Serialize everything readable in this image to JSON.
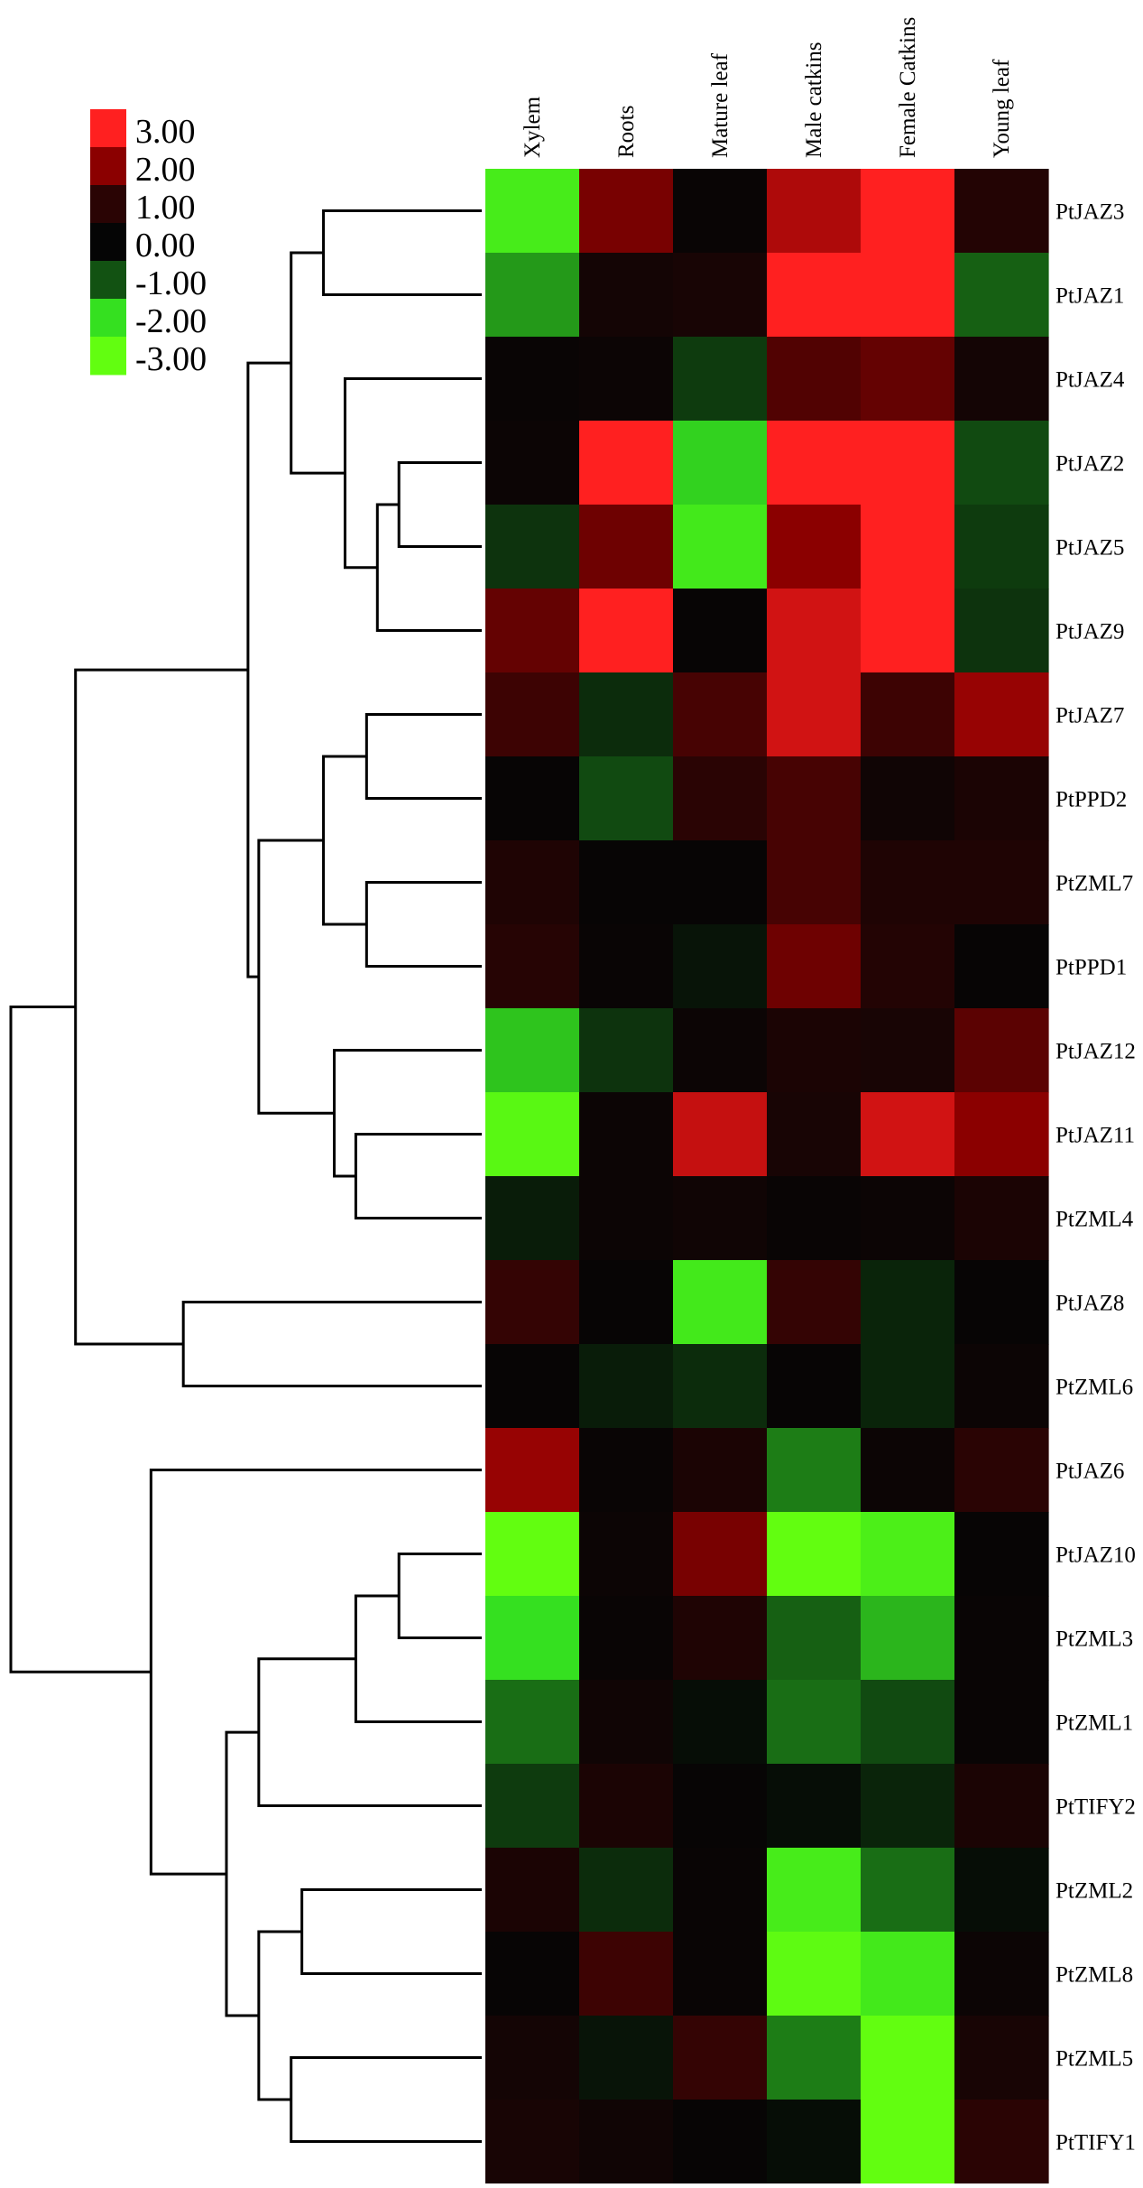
{
  "chart_data": {
    "type": "heatmap",
    "columns": [
      "Xylem",
      "Roots",
      "Mature leaf",
      "Male catkins",
      "Female Catkins",
      "Young leaf"
    ],
    "rows": [
      "PtJAZ3",
      "PtJAZ1",
      "PtJAZ4",
      "PtJAZ2",
      "PtJAZ5",
      "PtJAZ9",
      "PtJAZ7",
      "PtPPD2",
      "PtZML7",
      "PtPPD1",
      "PtJAZ12",
      "PtJAZ11",
      "PtZML4",
      "PtJAZ8",
      "PtZML6",
      "PtJAZ6",
      "PtJAZ10",
      "PtZML3",
      "PtZML1",
      "PtTIFY2",
      "PtZML2",
      "PtZML8",
      "PtZML5",
      "PtTIFY1"
    ],
    "values": [
      [
        -2.4,
        1.8,
        0.1,
        2.3,
        3.0,
        0.8
      ],
      [
        -1.5,
        0.4,
        0.5,
        3.0,
        3.0,
        -1.1
      ],
      [
        0.1,
        0.2,
        -0.7,
        1.4,
        1.6,
        0.4
      ],
      [
        0.2,
        3.0,
        -1.9,
        3.0,
        3.0,
        -0.9
      ],
      [
        -0.6,
        1.7,
        -2.3,
        2.0,
        3.0,
        -0.7
      ],
      [
        1.6,
        3.0,
        0.05,
        2.6,
        3.0,
        -0.6
      ],
      [
        1.2,
        -0.5,
        1.3,
        2.6,
        1.2,
        2.1
      ],
      [
        0.05,
        -0.9,
        1.0,
        1.3,
        0.3,
        0.6
      ],
      [
        0.7,
        0.05,
        0.05,
        1.3,
        0.7,
        0.7
      ],
      [
        0.9,
        0.1,
        -0.2,
        1.7,
        0.8,
        0.05
      ],
      [
        -1.8,
        -0.6,
        0.2,
        0.6,
        0.5,
        1.5
      ],
      [
        -2.8,
        0.2,
        2.5,
        0.5,
        2.6,
        2.0
      ],
      [
        -0.3,
        0.2,
        0.3,
        0.1,
        0.2,
        0.6
      ],
      [
        1.1,
        0.05,
        -2.3,
        1.1,
        -0.4,
        0.05
      ],
      [
        0.05,
        -0.3,
        -0.5,
        0.05,
        -0.4,
        0.2
      ],
      [
        2.1,
        0.1,
        0.6,
        -1.3,
        0.2,
        1.0
      ],
      [
        -3.0,
        0.2,
        1.8,
        -3.0,
        -2.5,
        0.05
      ],
      [
        -2.0,
        0.1,
        0.7,
        -1.1,
        -1.7,
        0.1
      ],
      [
        -1.2,
        0.3,
        -0.1,
        -1.2,
        -0.9,
        0.1
      ],
      [
        -0.7,
        0.6,
        0.05,
        -0.1,
        -0.4,
        0.6
      ],
      [
        0.6,
        -0.5,
        0.1,
        -2.4,
        -1.2,
        -0.1
      ],
      [
        0.05,
        1.2,
        0.1,
        -2.9,
        -2.3,
        0.2
      ],
      [
        0.4,
        -0.2,
        1.1,
        -1.3,
        -3.0,
        0.5
      ],
      [
        0.5,
        0.3,
        0.05,
        -0.1,
        -3.0,
        1.0
      ]
    ],
    "legend": {
      "title": "",
      "position": "top-left",
      "labels": [
        "3.00",
        "2.00",
        "1.00",
        "0.00",
        "-1.00",
        "-2.00",
        "-3.00"
      ],
      "colors": [
        "#ff2020",
        "#8b0000",
        "#2a0404",
        "#050505",
        "#125212",
        "#35e020",
        "#62fe10"
      ]
    },
    "dendrogram": {
      "position": "left",
      "merges": [
        [
          3,
          4,
          0.2
        ],
        [
          24,
          5,
          0.3
        ],
        [
          2,
          25,
          0.45
        ],
        [
          0,
          1,
          0.55
        ],
        [
          6,
          7,
          0.35
        ],
        [
          8,
          9,
          0.35
        ],
        [
          28,
          29,
          0.55
        ],
        [
          11,
          12,
          0.4
        ],
        [
          10,
          31,
          0.5
        ],
        [
          26,
          27,
          0.7
        ],
        [
          30,
          32,
          0.85
        ],
        [
          33,
          34,
          0.9
        ],
        [
          13,
          14,
          1.2
        ],
        [
          35,
          36,
          1.7
        ],
        [
          16,
          17,
          0.2
        ],
        [
          38,
          18,
          0.4
        ],
        [
          39,
          19,
          0.85
        ],
        [
          21,
          20,
          0.65
        ],
        [
          22,
          23,
          0.7
        ],
        [
          41,
          42,
          0.85
        ],
        [
          40,
          43,
          1.0
        ],
        [
          15,
          44,
          1.35
        ],
        [
          37,
          45,
          2.0
        ]
      ],
      "max_height": 2.0
    },
    "xlabel": "",
    "ylabel": "",
    "grid": false
  }
}
